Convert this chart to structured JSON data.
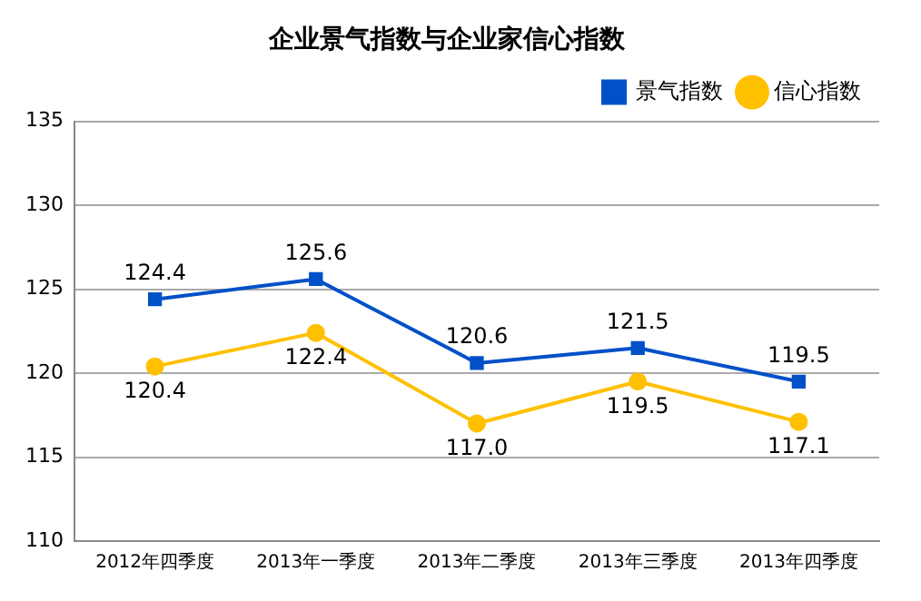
{
  "chart_data": {
    "type": "line",
    "title": "企业景气指数与企业家信心指数",
    "categories": [
      "2012年四季度",
      "2013年一季度",
      "2013年二季度",
      "2013年三季度",
      "2013年四季度"
    ],
    "series": [
      {
        "name": "景气指数",
        "color": "#0050c8",
        "marker": "square",
        "values": [
          124.4,
          125.6,
          120.6,
          121.5,
          119.5
        ],
        "value_labels": [
          "124.4",
          "125.6",
          "120.6",
          "121.5",
          "119.5"
        ]
      },
      {
        "name": "信心指数",
        "color": "#ffc000",
        "marker": "circle",
        "values": [
          120.4,
          122.4,
          117.0,
          119.5,
          117.1
        ],
        "value_labels": [
          "120.4",
          "122.4",
          "117.0",
          "119.5",
          "117.1"
        ]
      }
    ],
    "ylim": [
      110,
      135
    ],
    "yticks": [
      110,
      115,
      120,
      125,
      130,
      135
    ],
    "grid": "y",
    "legend": "top right",
    "line_style": "solid"
  }
}
